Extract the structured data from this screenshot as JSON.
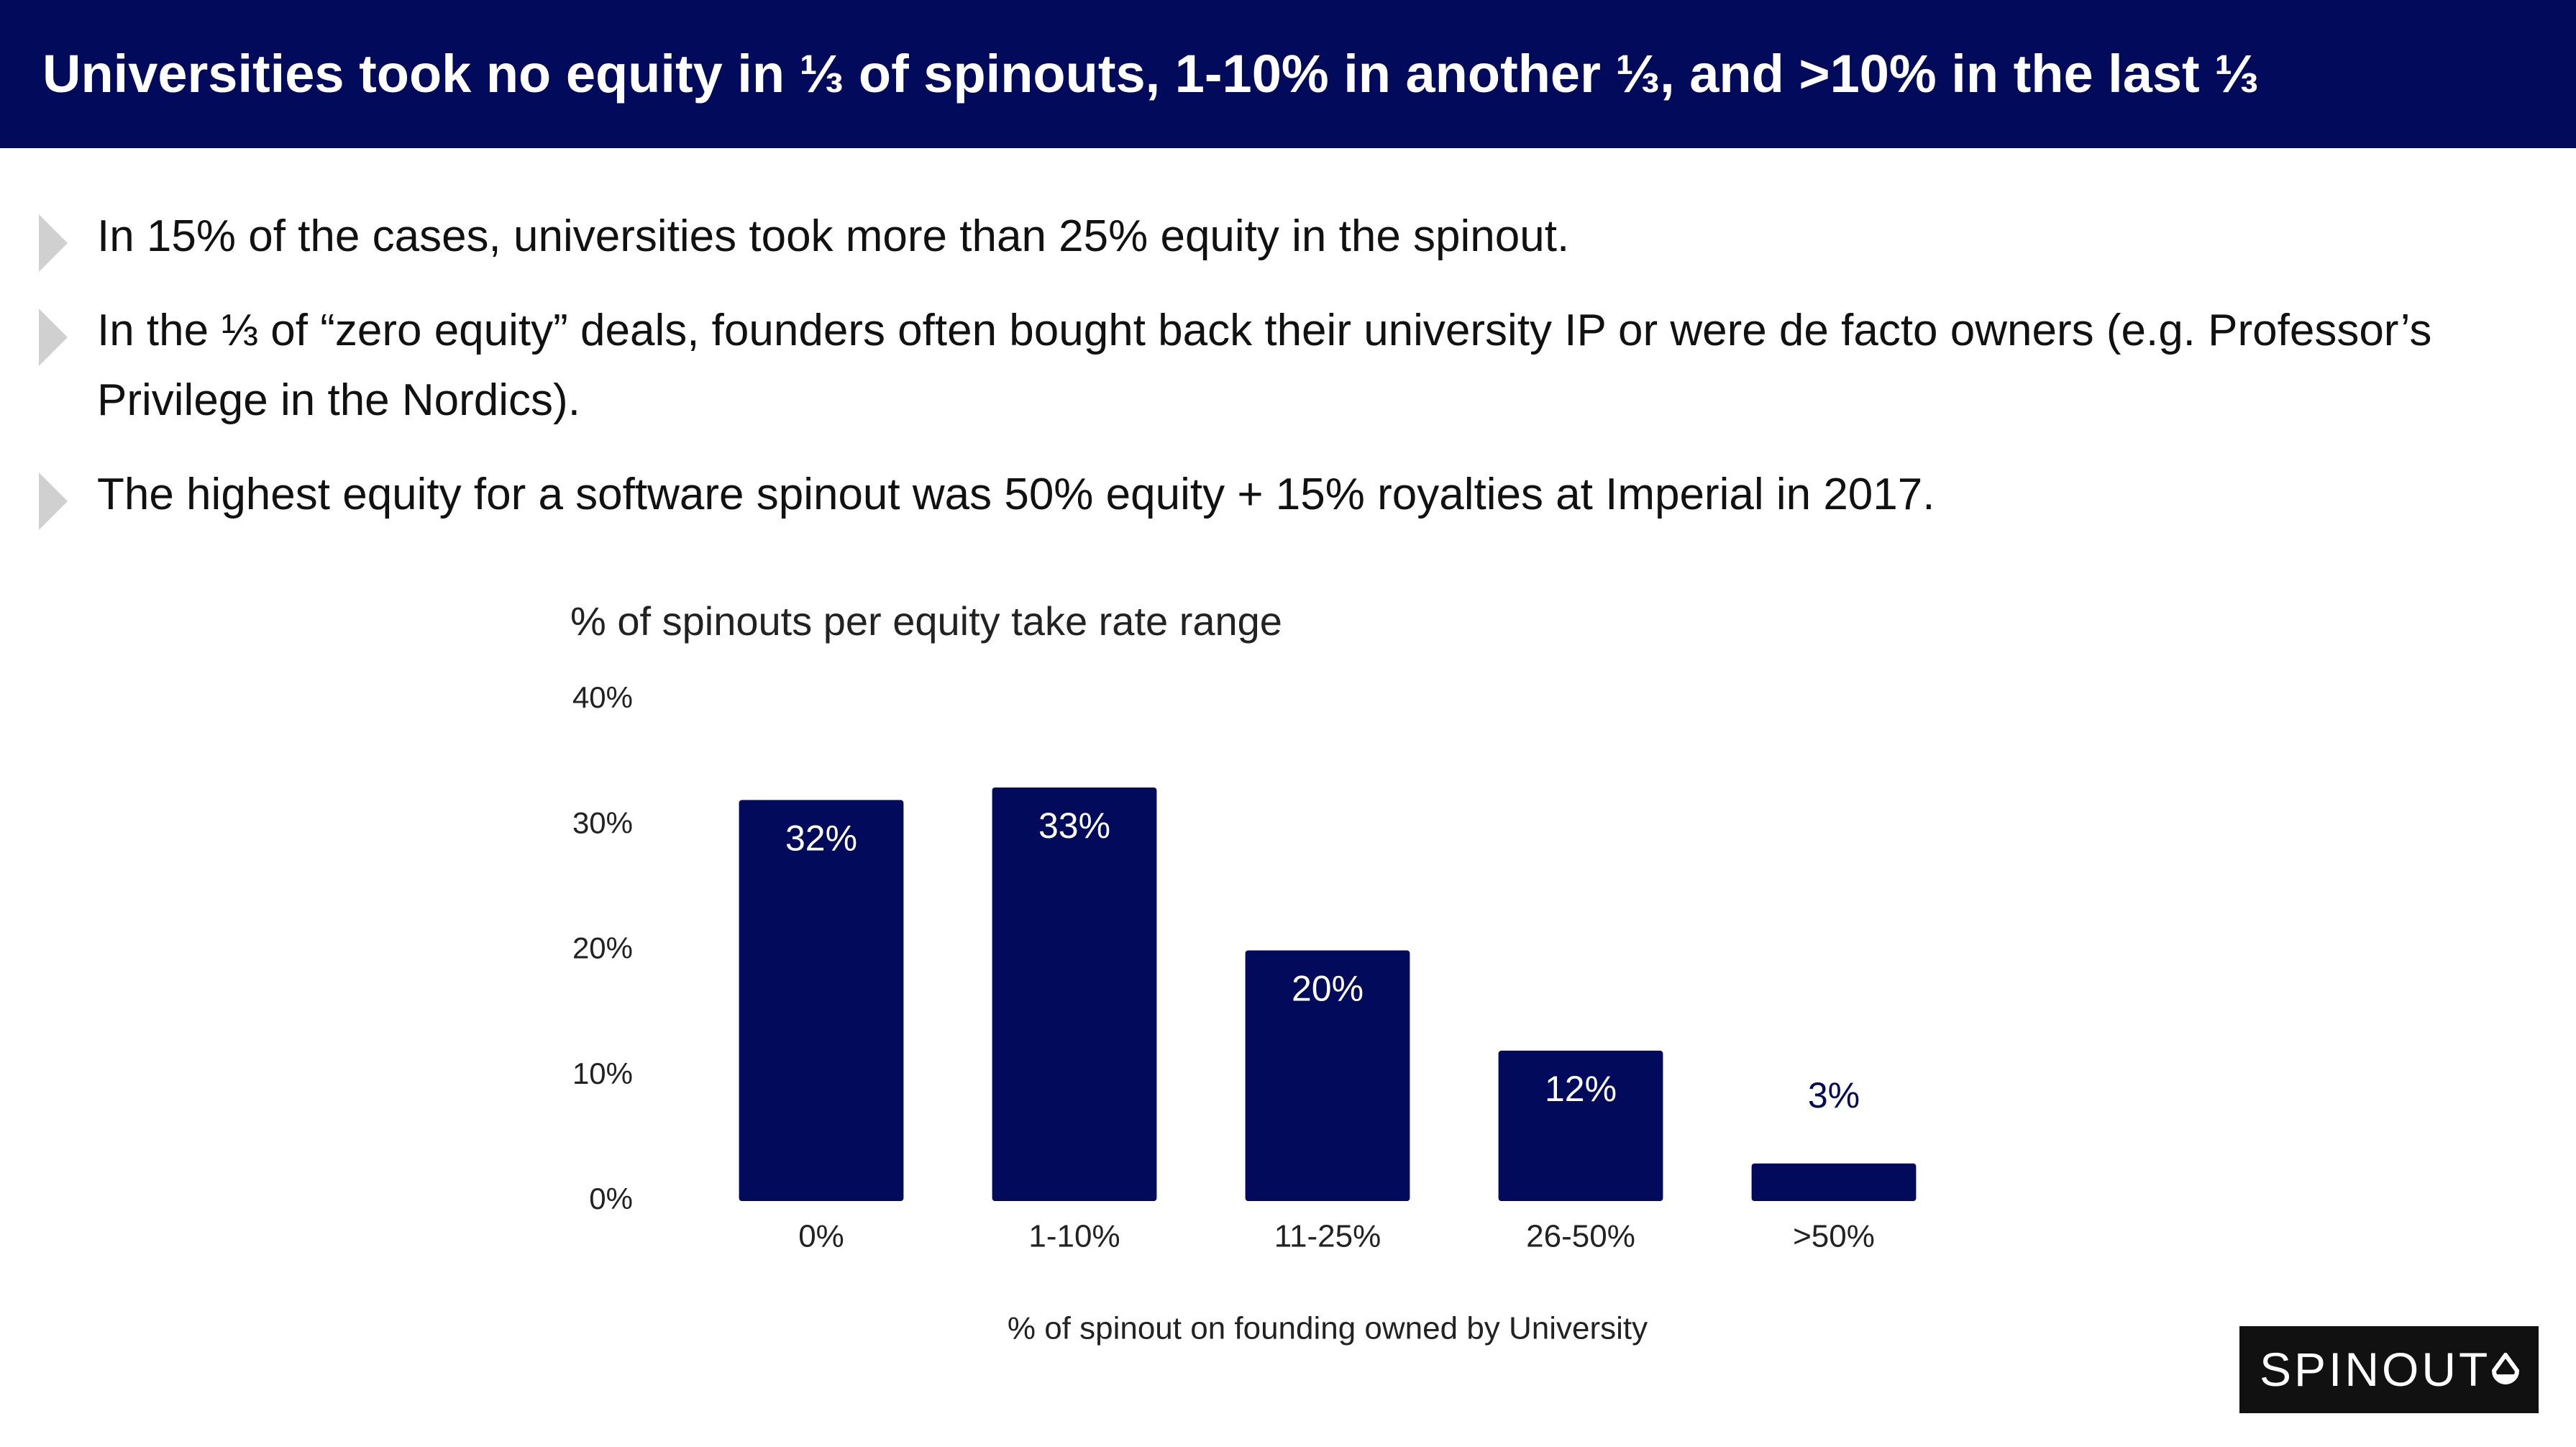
{
  "title": "Universities took no equity in ⅓ of spinouts, 1-10% in another ⅓, and >10% in the last ⅓",
  "bullets": [
    "In 15% of the cases, universities took more than 25% equity in the spinout.",
    "In the ⅓ of “zero equity” deals, founders often bought back their university IP or were de facto owners (e.g. Professor’s Privilege in the Nordics).",
    "The highest equity for a software spinout was 50% equity + 15% royalties at Imperial in 2017."
  ],
  "logo": "SPINOUT",
  "chart_data": {
    "type": "bar",
    "title": "% of spinouts per equity take rate range",
    "x_label": "% of spinout on founding owned by University",
    "categories": [
      "0%",
      "1-10%",
      "11-25%",
      "26-50%",
      ">50%"
    ],
    "values": [
      32,
      33,
      20,
      12,
      3
    ],
    "value_labels": [
      "32%",
      "33%",
      "20%",
      "12%",
      "3%"
    ],
    "color": "#020b5b",
    "ylim": [
      0,
      40
    ],
    "yticks": [
      {
        "value": 0,
        "label": "0%"
      },
      {
        "value": 10,
        "label": "10%"
      },
      {
        "value": 20,
        "label": "20%"
      },
      {
        "value": 30,
        "label": "30%"
      },
      {
        "value": 40,
        "label": "40%"
      }
    ],
    "grid": false
  }
}
